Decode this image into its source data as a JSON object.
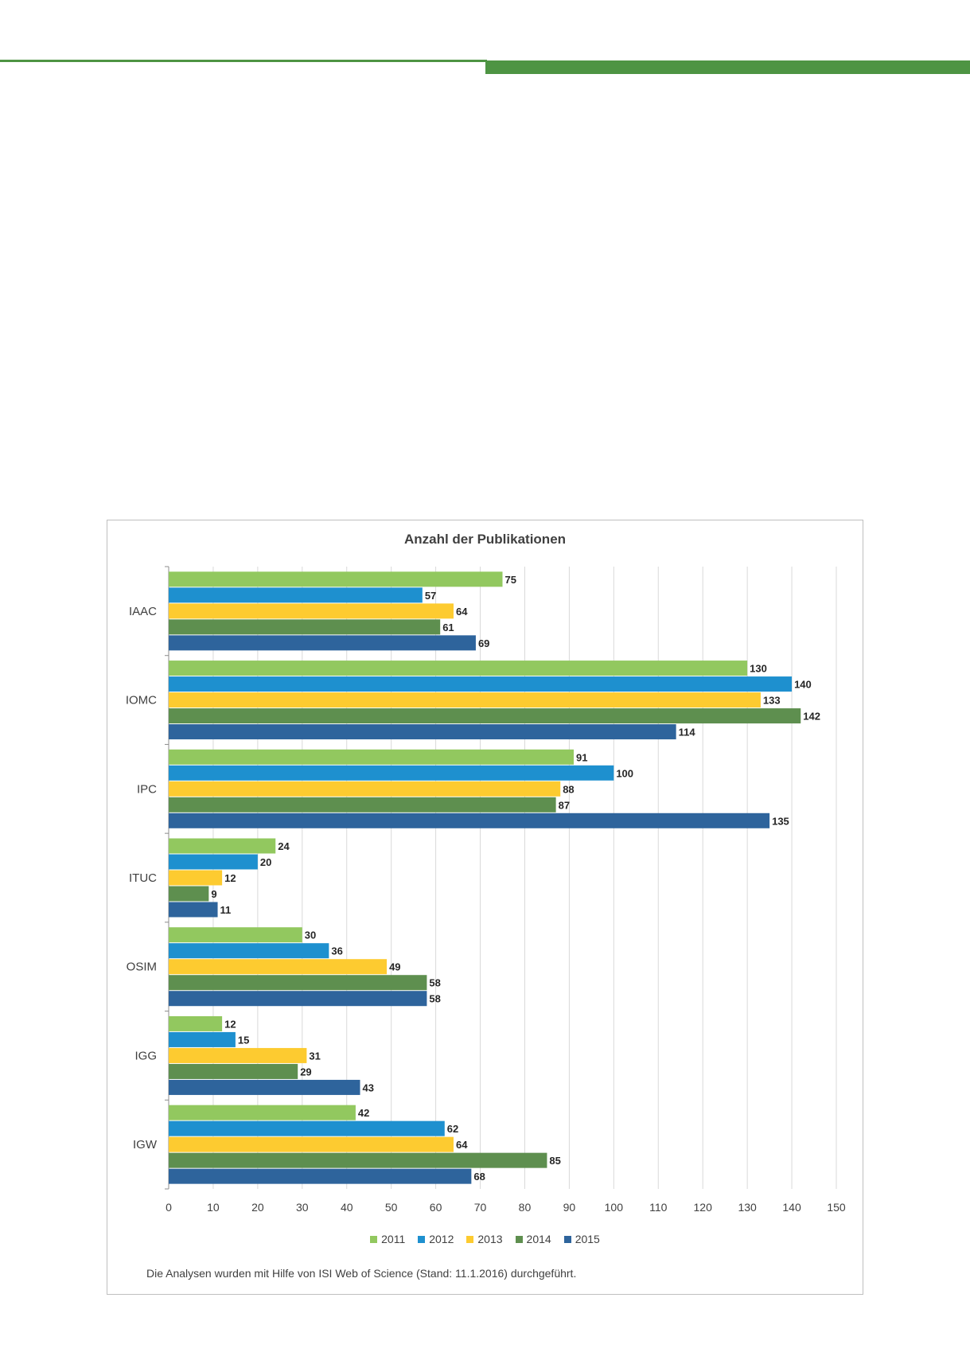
{
  "chart_data": {
    "type": "bar",
    "orientation": "horizontal",
    "title": "Anzahl der Publikationen",
    "categories": [
      "IAAC",
      "IOMC",
      "IPC",
      "ITUC",
      "OSIM",
      "IGG",
      "IGW"
    ],
    "series": [
      {
        "name": "2011",
        "color": "#92c85f",
        "values": [
          75,
          130,
          91,
          24,
          30,
          12,
          42
        ]
      },
      {
        "name": "2012",
        "color": "#1e90cf",
        "values": [
          57,
          140,
          100,
          20,
          36,
          15,
          62
        ]
      },
      {
        "name": "2013",
        "color": "#fdcb30",
        "values": [
          64,
          133,
          88,
          12,
          49,
          31,
          64
        ]
      },
      {
        "name": "2014",
        "color": "#5e8f4f",
        "values": [
          61,
          142,
          87,
          9,
          58,
          29,
          85
        ]
      },
      {
        "name": "2015",
        "color": "#2e649c",
        "values": [
          69,
          114,
          135,
          11,
          58,
          43,
          68
        ]
      }
    ],
    "xlim": [
      0,
      150
    ],
    "xticks": [
      0,
      10,
      20,
      30,
      40,
      50,
      60,
      70,
      80,
      90,
      100,
      110,
      120,
      130,
      140,
      150
    ],
    "grid": true,
    "legend": "bottom",
    "footnote": "Die Analysen wurden mit Hilfe von ISI Web of Science (Stand: 11.1.2016) durchgeführt."
  }
}
